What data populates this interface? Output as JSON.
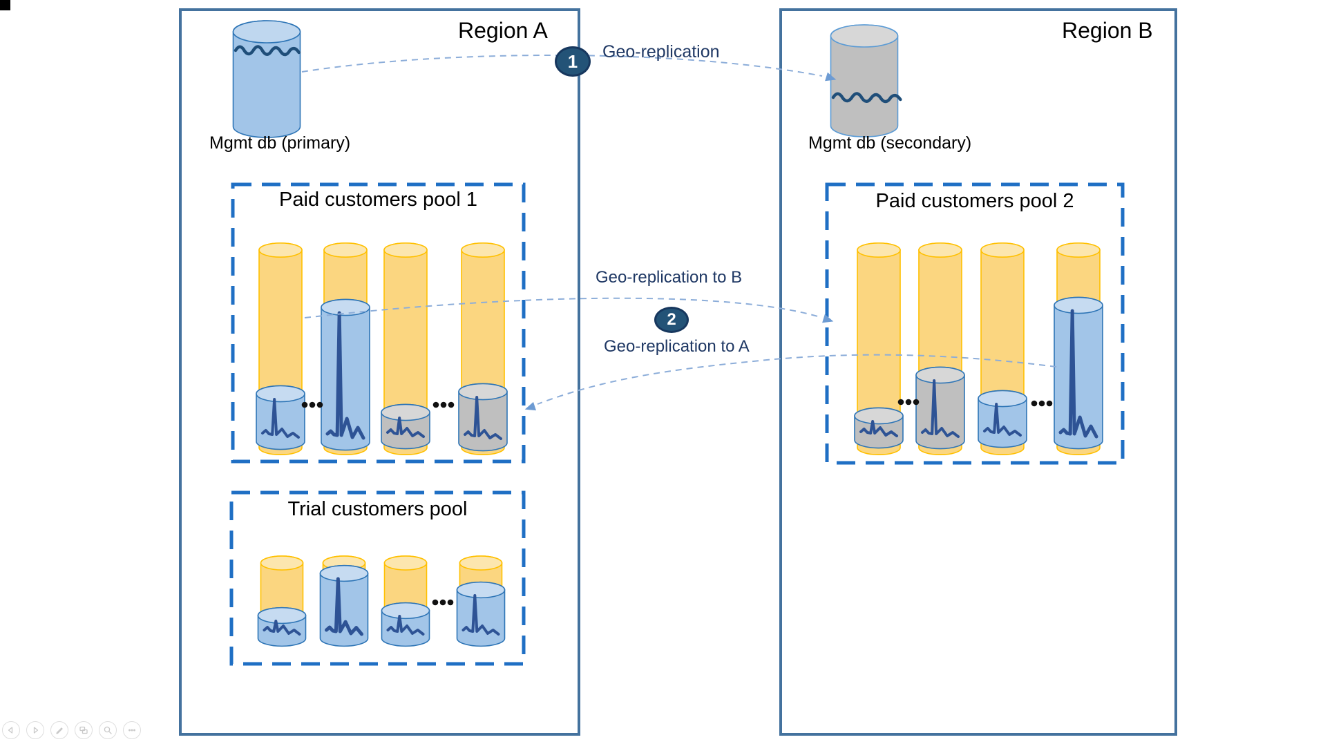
{
  "slide": {
    "regions": [
      {
        "id": "region-a",
        "title": "Region A"
      },
      {
        "id": "region-b",
        "title": "Region B"
      }
    ],
    "databases": [
      {
        "id": "mgmt-primary",
        "label": "Mgmt db (primary)"
      },
      {
        "id": "mgmt-secondary",
        "label": "Mgmt db (secondary)"
      }
    ],
    "pools": [
      {
        "id": "paid-pool-1",
        "title": "Paid customers pool 1",
        "ellipsis": "..."
      },
      {
        "id": "trial-pool",
        "title": "Trial customers pool",
        "ellipsis": "..."
      },
      {
        "id": "paid-pool-2",
        "title": "Paid customers pool 2",
        "ellipsis": "..."
      }
    ],
    "flows": [
      {
        "badge": "1",
        "labels": [
          "Geo-replication"
        ]
      },
      {
        "badge": "2",
        "labels": [
          "Geo-replication to B",
          "Geo-replication to A"
        ]
      }
    ]
  },
  "toolbar": {
    "buttons": [
      {
        "icon": "previous-slide-icon"
      },
      {
        "icon": "next-slide-icon"
      },
      {
        "icon": "pen-icon"
      },
      {
        "icon": "all-slides-icon"
      },
      {
        "icon": "zoom-icon"
      },
      {
        "icon": "more-options-icon"
      }
    ]
  },
  "colors": {
    "region_border": "#44729E",
    "pool_border": "#1F6FC4",
    "yellow_fill": "#FBD680",
    "yellow_top": "#FCE6AE",
    "yellow_stroke": "#FFC000",
    "blue_fill": "#A2C5E8",
    "blue_top": "#C6DBF1",
    "blue_stroke": "#2E75B6",
    "gray_fill": "#BFBFBF",
    "gray_top": "#D7D7D7",
    "spark": "#2E5395",
    "squiggle": "#1F4E79",
    "arrow": "#8CADD9",
    "arrow_head": "#6D9BD3",
    "badge_fill": "#235377",
    "badge_stroke": "#17375E",
    "label_dark": "#1F3864"
  }
}
